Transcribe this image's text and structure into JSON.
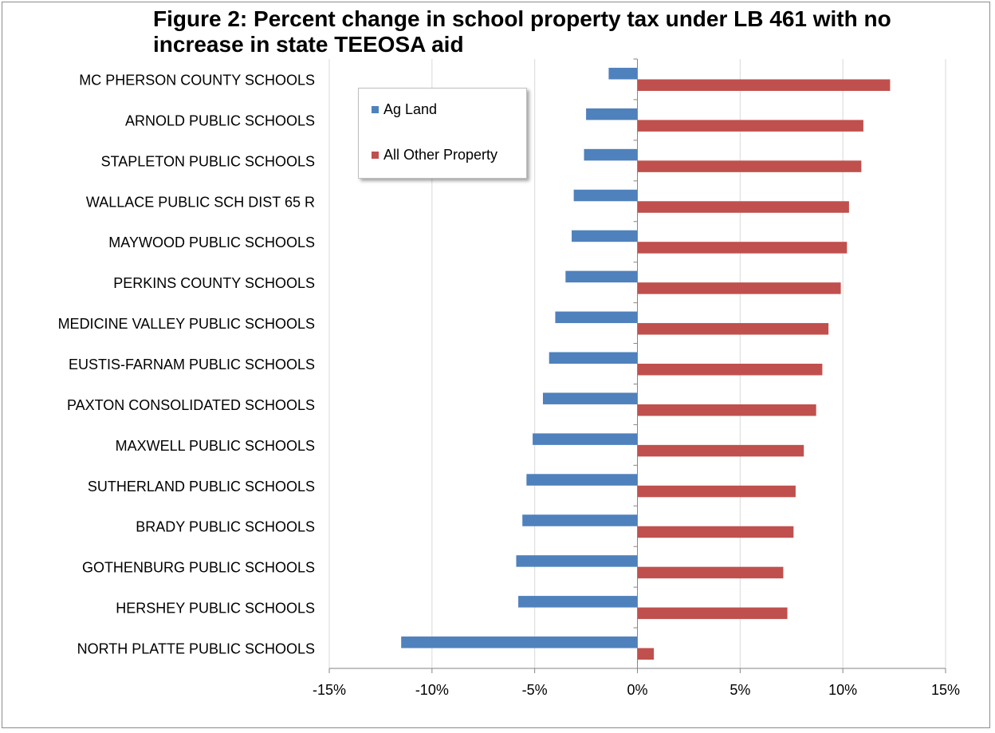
{
  "chart_data": {
    "type": "bar",
    "orientation": "horizontal",
    "title": "Figure 2: Percent change in school property tax under LB 461 with no increase in state TEEOSA aid",
    "xlabel": "",
    "ylabel": "",
    "xlim": [
      -15,
      15
    ],
    "x_ticks": [
      -15,
      -10,
      -5,
      0,
      5,
      10,
      15
    ],
    "x_tick_labels": [
      "-15%",
      "-10%",
      "-5%",
      "0%",
      "5%",
      "10%",
      "15%"
    ],
    "grid": "vertical",
    "legend": "top-left, inside plot",
    "categories": [
      "MC PHERSON COUNTY SCHOOLS",
      "ARNOLD PUBLIC SCHOOLS",
      "STAPLETON PUBLIC SCHOOLS",
      "WALLACE PUBLIC SCH DIST 65 R",
      "MAYWOOD PUBLIC SCHOOLS",
      "PERKINS COUNTY SCHOOLS",
      "MEDICINE VALLEY PUBLIC SCHOOLS",
      "EUSTIS-FARNAM PUBLIC SCHOOLS",
      "PAXTON CONSOLIDATED SCHOOLS",
      "MAXWELL PUBLIC SCHOOLS",
      "SUTHERLAND PUBLIC SCHOOLS",
      "BRADY PUBLIC SCHOOLS",
      "GOTHENBURG PUBLIC SCHOOLS",
      "HERSHEY PUBLIC SCHOOLS",
      "NORTH PLATTE PUBLIC SCHOOLS"
    ],
    "series": [
      {
        "name": "Ag Land",
        "color": "#4f81bd",
        "values": [
          -1.4,
          -2.5,
          -2.6,
          -3.1,
          -3.2,
          -3.5,
          -4.0,
          -4.3,
          -4.6,
          -5.1,
          -5.4,
          -5.6,
          -5.9,
          -5.8,
          -11.5
        ]
      },
      {
        "name": "All Other Property",
        "color": "#c0504d",
        "values": [
          12.3,
          11.0,
          10.9,
          10.3,
          10.2,
          9.9,
          9.3,
          9.0,
          8.7,
          8.1,
          7.7,
          7.6,
          7.1,
          7.3,
          0.8
        ]
      }
    ]
  }
}
